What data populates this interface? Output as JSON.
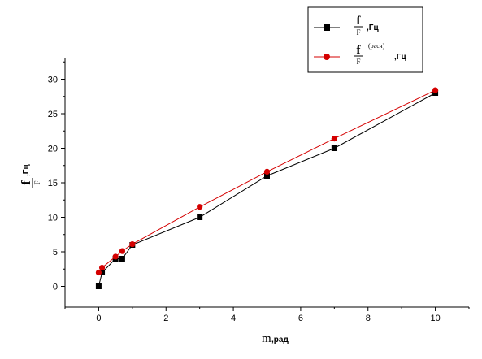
{
  "chart_data": {
    "type": "line",
    "x": [
      0,
      0.1,
      0.5,
      0.7,
      1,
      3,
      5,
      7,
      10
    ],
    "series": [
      {
        "name_num": "f",
        "name_den": "F",
        "name_sup": "",
        "name_unit": ",Гц",
        "values": [
          0,
          2,
          4,
          4,
          6,
          10,
          16,
          20,
          28
        ],
        "color": "#000000",
        "marker": "square"
      },
      {
        "name_num": "f",
        "name_den": "F",
        "name_sup": "(расч)",
        "name_unit": ",Гц",
        "values": [
          2,
          2.7,
          4.3,
          5.1,
          6.1,
          11.5,
          16.6,
          21.4,
          28.4
        ],
        "color": "#d40000",
        "marker": "circle"
      }
    ],
    "xlabel": "m",
    "xlabel_unit": ",рад",
    "ylabel_num": "f",
    "ylabel_den": "F",
    "ylabel_unit": ",Гц",
    "xlim": [
      -1,
      11
    ],
    "ylim": [
      -3,
      33
    ],
    "xticks": [
      0,
      2,
      4,
      6,
      8,
      10
    ],
    "yticks": [
      0,
      5,
      10,
      15,
      20,
      25,
      30
    ],
    "grid": false,
    "legend_position": "top-right"
  }
}
